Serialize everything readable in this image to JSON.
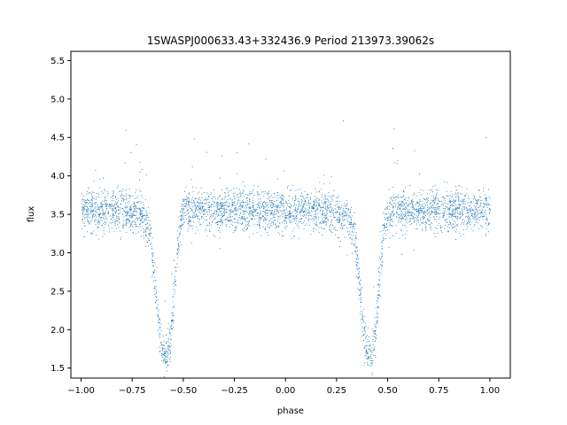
{
  "chart_data": {
    "type": "scatter",
    "title": "1SWASPJ000633.43+332436.9 Period 213973.39062s",
    "xlabel": "phase",
    "ylabel": "flux",
    "xlim": [
      -1.05,
      1.1
    ],
    "ylim": [
      1.37,
      5.62
    ],
    "xticks": [
      -1.0,
      -0.75,
      -0.5,
      -0.25,
      0.0,
      0.25,
      0.5,
      0.75,
      1.0
    ],
    "xtick_labels": [
      "−1.00",
      "−0.75",
      "−0.50",
      "−0.25",
      "0.00",
      "0.25",
      "0.50",
      "0.75",
      "1.00"
    ],
    "yticks": [
      1.5,
      2.0,
      2.5,
      3.0,
      3.5,
      4.0,
      4.5,
      5.0,
      5.5
    ],
    "ytick_labels": [
      "1.5",
      "2.0",
      "2.5",
      "3.0",
      "3.5",
      "4.0",
      "4.5",
      "5.0",
      "5.5"
    ],
    "grid": false,
    "marker_color": "#1f77b4",
    "series": [
      {
        "description_points": "phase-folded light curve, baseline flux ~3.55 with scatter ~0.15; primary eclipses at phase ~-0.58 and ~0.42 reaching flux ~1.6; secondary shoulder dips near ~2.8",
        "x": [
          -1.0,
          -0.9,
          -0.8,
          -0.7,
          -0.66,
          -0.64,
          -0.62,
          -0.6,
          -0.58,
          -0.56,
          -0.54,
          -0.52,
          -0.5,
          -0.4,
          -0.3,
          -0.2,
          -0.1,
          0.0,
          0.1,
          0.2,
          0.3,
          0.34,
          0.36,
          0.38,
          0.4,
          0.42,
          0.44,
          0.46,
          0.48,
          0.5,
          0.6,
          0.7,
          0.8,
          0.9,
          1.0
        ],
        "y": [
          3.55,
          3.55,
          3.55,
          3.5,
          3.2,
          2.6,
          2.0,
          1.7,
          1.65,
          2.0,
          2.7,
          3.3,
          3.55,
          3.55,
          3.55,
          3.55,
          3.55,
          3.55,
          3.55,
          3.55,
          3.5,
          3.2,
          2.6,
          2.0,
          1.7,
          1.65,
          2.0,
          2.7,
          3.3,
          3.55,
          3.55,
          3.55,
          3.55,
          3.55,
          3.55
        ]
      }
    ]
  }
}
